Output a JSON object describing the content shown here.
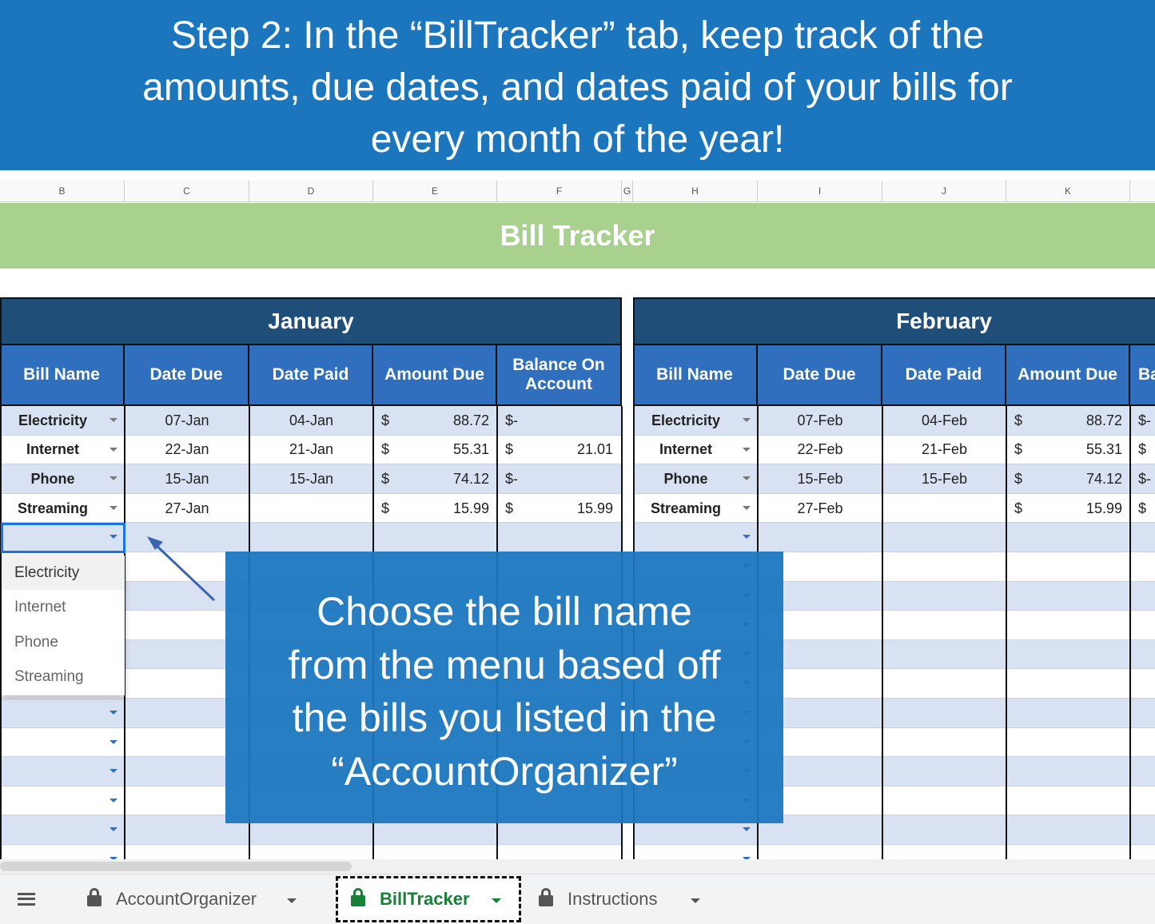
{
  "banner_lines": [
    "Step 2: In the “BillTracker” tab, keep track of the",
    "amounts, due dates, and dates paid of your bills for",
    "every month of the year!"
  ],
  "column_letters": [
    "B",
    "C",
    "D",
    "E",
    "F",
    "G",
    "H",
    "I",
    "J",
    "K"
  ],
  "sheet_title": "Bill Tracker",
  "months": [
    {
      "name": "January",
      "headers": [
        "Bill Name",
        "Date Due",
        "Date Paid",
        "Amount Due",
        "Balance On Account"
      ],
      "rows": [
        {
          "bill": "Electricity",
          "due": "07-Jan",
          "paid": "04-Jan",
          "amount": [
            "$",
            "88.72"
          ],
          "balance": [
            "$-"
          ]
        },
        {
          "bill": "Internet",
          "due": "22-Jan",
          "paid": "21-Jan",
          "amount": [
            "$",
            "55.31"
          ],
          "balance": [
            "$",
            "21.01"
          ]
        },
        {
          "bill": "Phone",
          "due": "15-Jan",
          "paid": "15-Jan",
          "amount": [
            "$",
            "74.12"
          ],
          "balance": [
            "$-"
          ]
        },
        {
          "bill": "Streaming",
          "due": "27-Jan",
          "amount": [
            "$",
            "15.99"
          ],
          "balance": [
            "$",
            "15.99"
          ]
        }
      ]
    },
    {
      "name": "February",
      "headers": [
        "Bill Name",
        "Date Due",
        "Date Paid",
        "Amount Due",
        "Ba"
      ],
      "rows": [
        {
          "bill": "Electricity",
          "due": "07-Feb",
          "paid": "04-Feb",
          "amount": [
            "$",
            "88.72"
          ],
          "balance": [
            "$-"
          ]
        },
        {
          "bill": "Internet",
          "due": "22-Feb",
          "paid": "21-Feb",
          "amount": [
            "$",
            "55.31"
          ],
          "balance": [
            "$"
          ]
        },
        {
          "bill": "Phone",
          "due": "15-Feb",
          "paid": "15-Feb",
          "amount": [
            "$",
            "74.12"
          ],
          "balance": [
            "$-"
          ]
        },
        {
          "bill": "Streaming",
          "due": "27-Feb",
          "amount": [
            "$",
            "15.99"
          ],
          "balance": [
            "$"
          ]
        }
      ]
    }
  ],
  "dropdown_options": [
    "Electricity",
    "Internet",
    "Phone",
    "Streaming"
  ],
  "callout_lines": [
    "Choose the bill name",
    "from the menu based off",
    "the bills you listed in the",
    "“AccountOrganizer”"
  ],
  "tabs": [
    "AccountOrganizer",
    "BillTracker",
    "Instructions"
  ]
}
